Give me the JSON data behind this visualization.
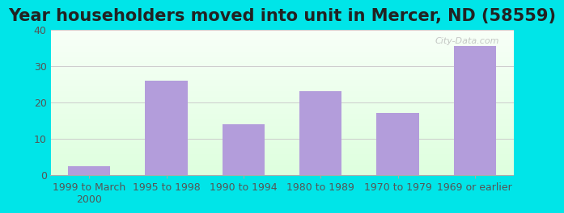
{
  "title": "Year householders moved into unit in Mercer, ND (58559)",
  "categories": [
    "1999 to March\n2000",
    "1995 to 1998",
    "1990 to 1994",
    "1980 to 1989",
    "1970 to 1979",
    "1969 or earlier"
  ],
  "values": [
    2.5,
    26,
    14,
    23,
    17,
    35.5
  ],
  "bar_color": "#b39ddb",
  "background_outer": "#00e5e8",
  "ylim": [
    0,
    40
  ],
  "yticks": [
    0,
    10,
    20,
    30,
    40
  ],
  "title_fontsize": 15,
  "tick_fontsize": 9,
  "grid_color": "#cccccc",
  "title_color": "#222222"
}
